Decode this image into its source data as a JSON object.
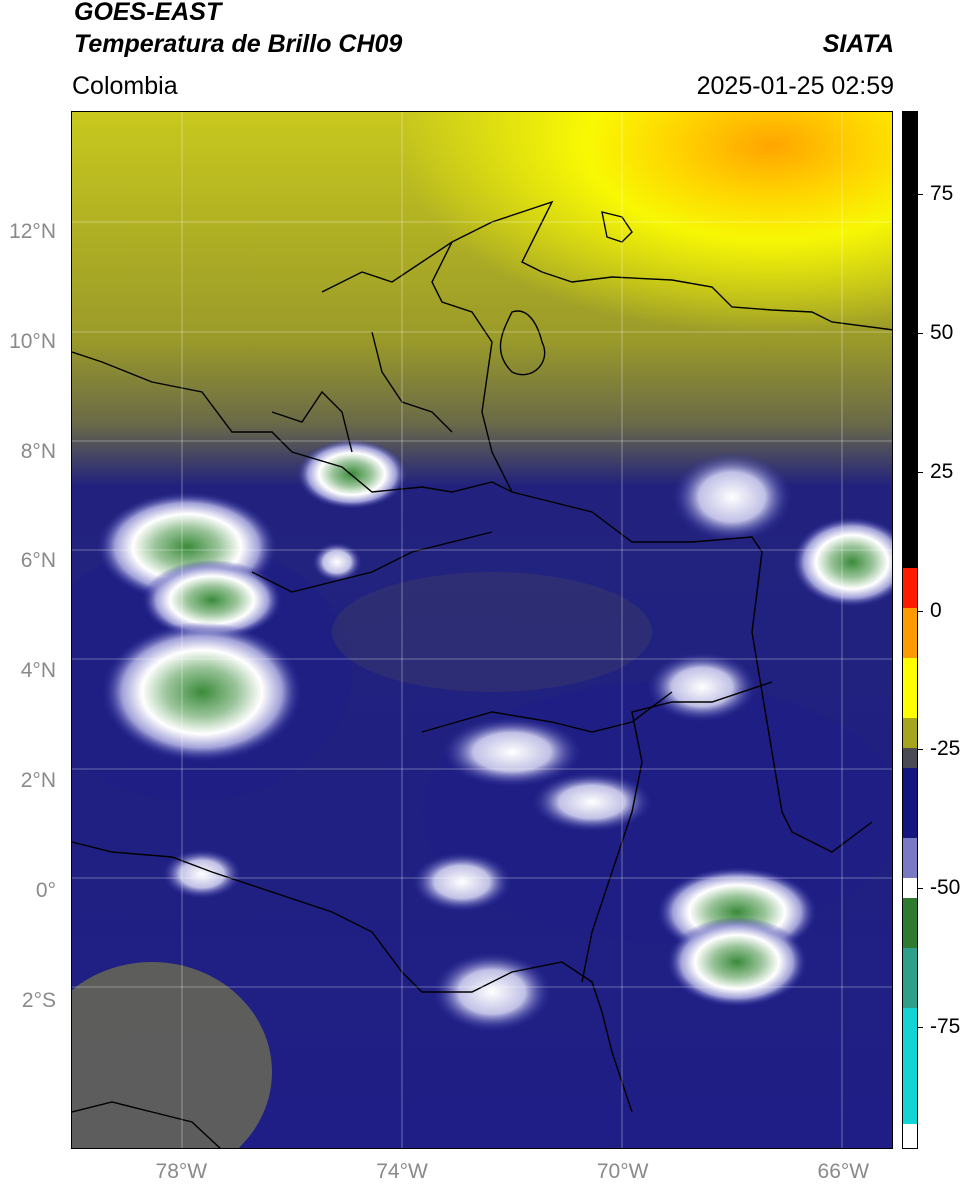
{
  "header": {
    "satellite": "GOES-EAST",
    "product": "Temperatura de Brillo CH09",
    "brand": "SIATA",
    "region": "Colombia",
    "datetime": "2025-01-25 02:59"
  },
  "map": {
    "projection": "PlateCarree",
    "extent": {
      "lon_min": -80,
      "lon_max": -65.1,
      "lat_min": -4.7,
      "lat_max": 14.2
    },
    "lat_ticks": [
      {
        "value": 12,
        "label": "12°N"
      },
      {
        "value": 10,
        "label": "10°N"
      },
      {
        "value": 8,
        "label": "8°N"
      },
      {
        "value": 6,
        "label": "6°N"
      },
      {
        "value": 4,
        "label": "4°N"
      },
      {
        "value": 2,
        "label": "2°N"
      },
      {
        "value": 0,
        "label": "0°"
      },
      {
        "value": -2,
        "label": "2°S"
      }
    ],
    "lon_ticks": [
      {
        "value": -78,
        "label": "78°W"
      },
      {
        "value": -74,
        "label": "74°W"
      },
      {
        "value": -70,
        "label": "70°W"
      },
      {
        "value": -66,
        "label": "66°W"
      }
    ],
    "gridlines": true
  },
  "colorbar": {
    "range": [
      -97,
      90
    ],
    "ticks": [
      {
        "value": 75,
        "label": "75"
      },
      {
        "value": 50,
        "label": "50"
      },
      {
        "value": 25,
        "label": "25"
      },
      {
        "value": 0,
        "label": "0"
      },
      {
        "value": -25,
        "label": "-25"
      },
      {
        "value": -50,
        "label": "-50"
      },
      {
        "value": -75,
        "label": "-75"
      }
    ],
    "colors": {
      "black": "#000000",
      "red": "#ff1a00",
      "orange": "#ff9a00",
      "yellow": "#ffff00",
      "olive": "#a5a51e",
      "grey": "#4a4a55",
      "navy": "#15157f",
      "blue": "#3434a6",
      "white": "#ffffff",
      "green": "#2e7a2e",
      "cyan": "#12d4d4"
    }
  }
}
